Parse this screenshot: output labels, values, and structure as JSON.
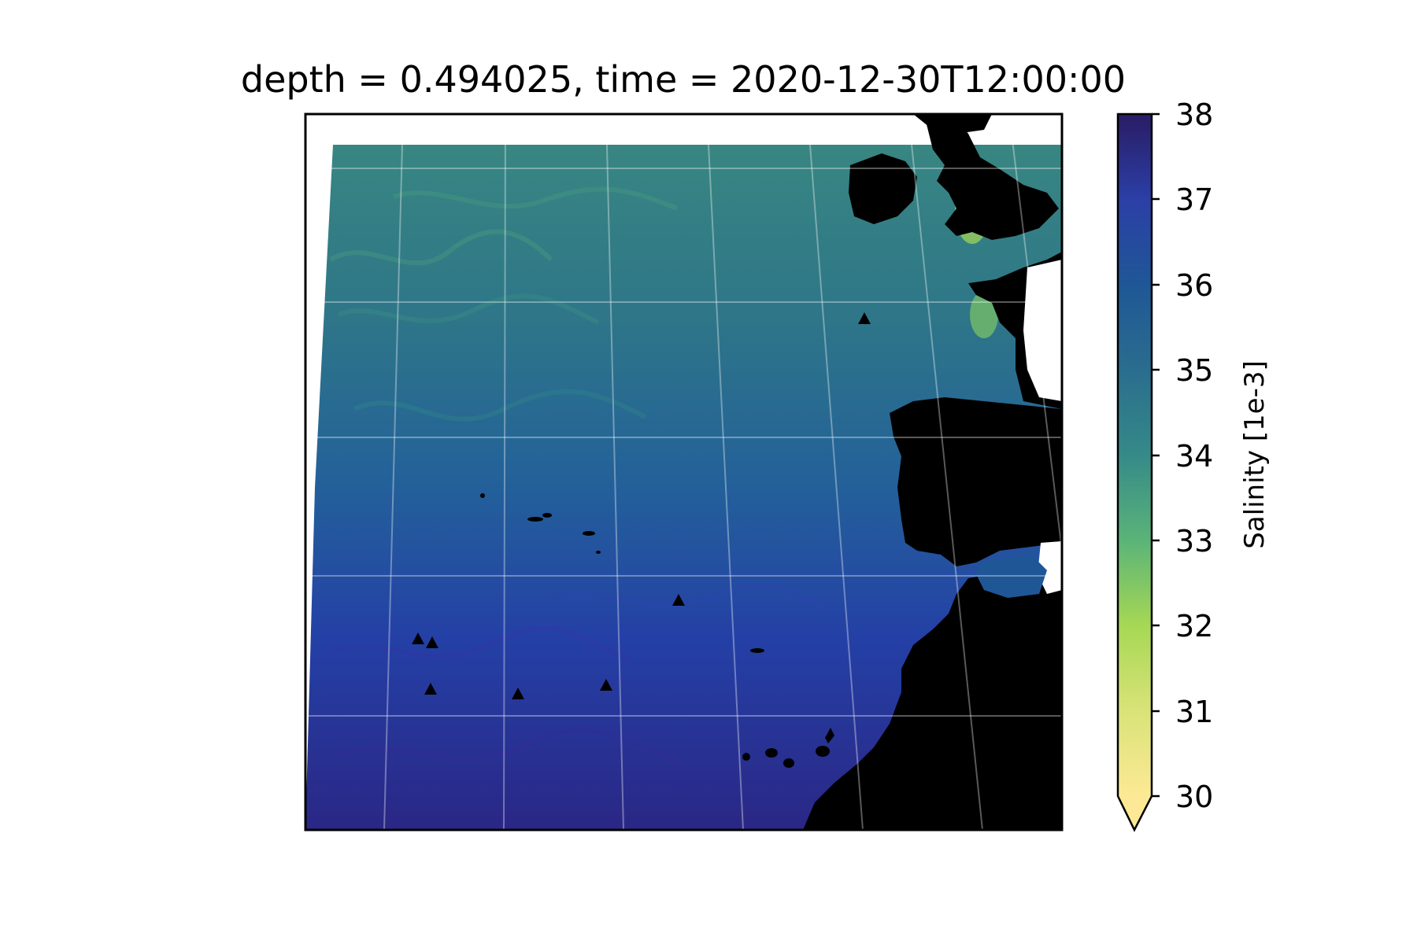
{
  "title": "depth = 0.494025, time = 2020-12-30T12:00:00",
  "colorbar": {
    "label": "Salinity [1e-3]",
    "ticks": [
      "38",
      "37",
      "36",
      "35",
      "34",
      "33",
      "32",
      "31",
      "30"
    ],
    "min": 30,
    "max": 38,
    "extend": "min",
    "colormap": "haline",
    "colors": [
      "#fde995",
      "#a6d854",
      "#5ab478",
      "#358a88",
      "#2a6d8e",
      "#1f5796",
      "#2b3fa6",
      "#2c2a8e",
      "#2a1c64"
    ]
  },
  "map": {
    "land_color": "#000000",
    "ocean_north_color": "#347f87",
    "ocean_south_color": "#2a2a90",
    "gridlines": "on",
    "markers": {
      "shape": "triangle",
      "color": "#000000",
      "count": 8
    }
  }
}
